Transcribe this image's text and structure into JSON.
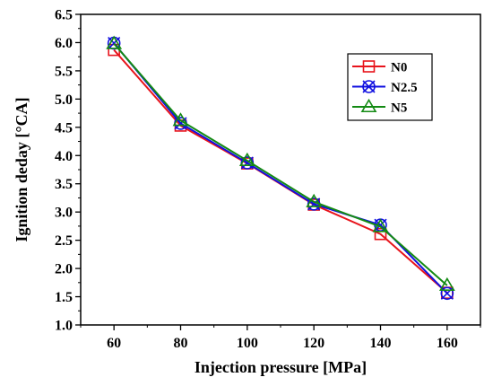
{
  "chart_data": {
    "type": "line",
    "x": [
      60,
      80,
      100,
      120,
      140,
      160
    ],
    "xticks": [
      "60",
      "80",
      "100",
      "120",
      "140",
      "160"
    ],
    "xlim": [
      50,
      170
    ],
    "yticks": [
      "1.0",
      "1.5",
      "2.0",
      "2.5",
      "3.0",
      "3.5",
      "4.0",
      "4.5",
      "5.0",
      "5.5",
      "6.0",
      "6.5"
    ],
    "ylim": [
      1.0,
      6.5
    ],
    "xlabel": "Injection pressure [MPa]",
    "ylabel": "Ignition deday [°CA]",
    "grid": false,
    "legend_position": "top-right",
    "series": [
      {
        "name": "N0",
        "marker": "square",
        "color": "#e8141c",
        "values": [
          5.87,
          4.53,
          3.86,
          3.13,
          2.61,
          1.57
        ]
      },
      {
        "name": "N2.5",
        "marker": "circle-cross",
        "color": "#1010e0",
        "values": [
          5.99,
          4.57,
          3.87,
          3.14,
          2.77,
          1.56
        ]
      },
      {
        "name": "N5",
        "marker": "triangle",
        "color": "#138a13",
        "values": [
          5.98,
          4.62,
          3.91,
          3.18,
          2.74,
          1.7
        ]
      }
    ]
  }
}
